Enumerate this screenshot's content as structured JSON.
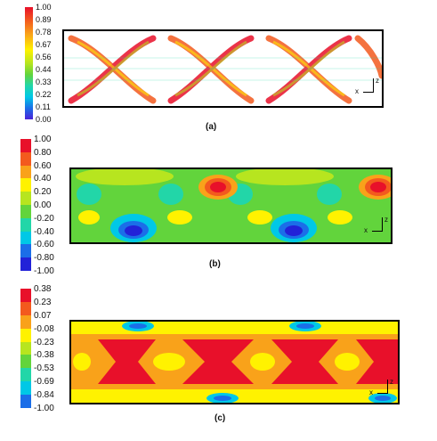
{
  "figure": {
    "panel_a": {
      "caption": "(a)",
      "legend_ticks": [
        "1.00",
        "0.89",
        "0.78",
        "0.67",
        "0.56",
        "0.44",
        "0.33",
        "0.22",
        "0.11",
        "0.00"
      ],
      "axis_labels": {
        "vertical": "z",
        "horizontal": "x"
      }
    },
    "panel_b": {
      "caption": "(b)",
      "legend_ticks": [
        "1.00",
        "0.80",
        "0.60",
        "0.40",
        "0.20",
        "0.00",
        "-0.20",
        "-0.40",
        "-0.60",
        "-0.80",
        "-1.00"
      ],
      "legend_colors": [
        "#e8102a",
        "#f35a1e",
        "#f9a21a",
        "#fff200",
        "#b7e51f",
        "#62d43c",
        "#22d6a8",
        "#00c8e6",
        "#1b6ee8",
        "#2222d8"
      ],
      "axis_labels": {
        "vertical": "z",
        "horizontal": "x"
      }
    },
    "panel_c": {
      "caption": "(c)",
      "legend_ticks": [
        "0.38",
        "0.23",
        "0.07",
        "-0.08",
        "-0.23",
        "-0.38",
        "-0.53",
        "-0.69",
        "-0.84",
        "-1.00"
      ],
      "legend_colors": [
        "#e8102a",
        "#f35a1e",
        "#f9a21a",
        "#fff200",
        "#b7e51f",
        "#62d43c",
        "#22d6a8",
        "#00c8e6",
        "#1b6ee8"
      ],
      "axis_labels": {
        "vertical": "z",
        "horizontal": "x"
      }
    }
  }
}
